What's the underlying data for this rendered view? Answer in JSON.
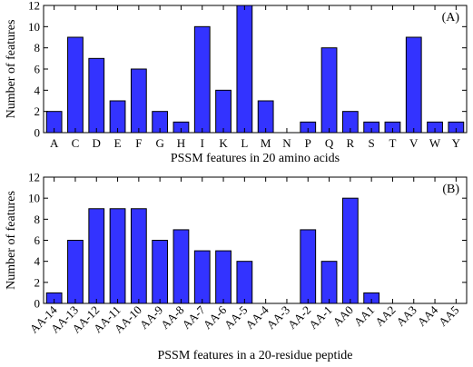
{
  "chart_data": [
    {
      "type": "bar",
      "panel_label": "(A)",
      "xlabel": "PSSM features in 20 amino acids",
      "ylabel": "Number of features",
      "ylim": [
        0,
        12
      ],
      "yticks": [
        0,
        2,
        4,
        6,
        8,
        10,
        12
      ],
      "categories": [
        "A",
        "C",
        "D",
        "E",
        "F",
        "G",
        "H",
        "I",
        "K",
        "L",
        "M",
        "N",
        "P",
        "Q",
        "R",
        "S",
        "T",
        "V",
        "W",
        "Y"
      ],
      "values": [
        2,
        9,
        7,
        3,
        6,
        2,
        1,
        10,
        4,
        12,
        3,
        0,
        1,
        8,
        2,
        1,
        1,
        9,
        1,
        1
      ],
      "bar_color": "#3333ff",
      "grid": false,
      "legend": "none"
    },
    {
      "type": "bar",
      "panel_label": "(B)",
      "xlabel": "PSSM features in a 20-residue peptide",
      "ylabel": "Number of features",
      "ylim": [
        0,
        12
      ],
      "yticks": [
        0,
        2,
        4,
        6,
        8,
        10,
        12
      ],
      "categories": [
        "AA-14",
        "AA-13",
        "AA-12",
        "AA-11",
        "AA-10",
        "AA-9",
        "AA-8",
        "AA-7",
        "AA-6",
        "AA-5",
        "AA-4",
        "AA-3",
        "AA-2",
        "AA-1",
        "AA0",
        "AA1",
        "AA2",
        "AA3",
        "AA4",
        "AA5"
      ],
      "values": [
        1,
        6,
        9,
        9,
        9,
        6,
        7,
        5,
        5,
        4,
        0,
        0,
        7,
        4,
        10,
        1,
        0,
        0,
        0,
        0
      ],
      "bar_color": "#3333ff",
      "grid": false,
      "legend": "none"
    }
  ]
}
